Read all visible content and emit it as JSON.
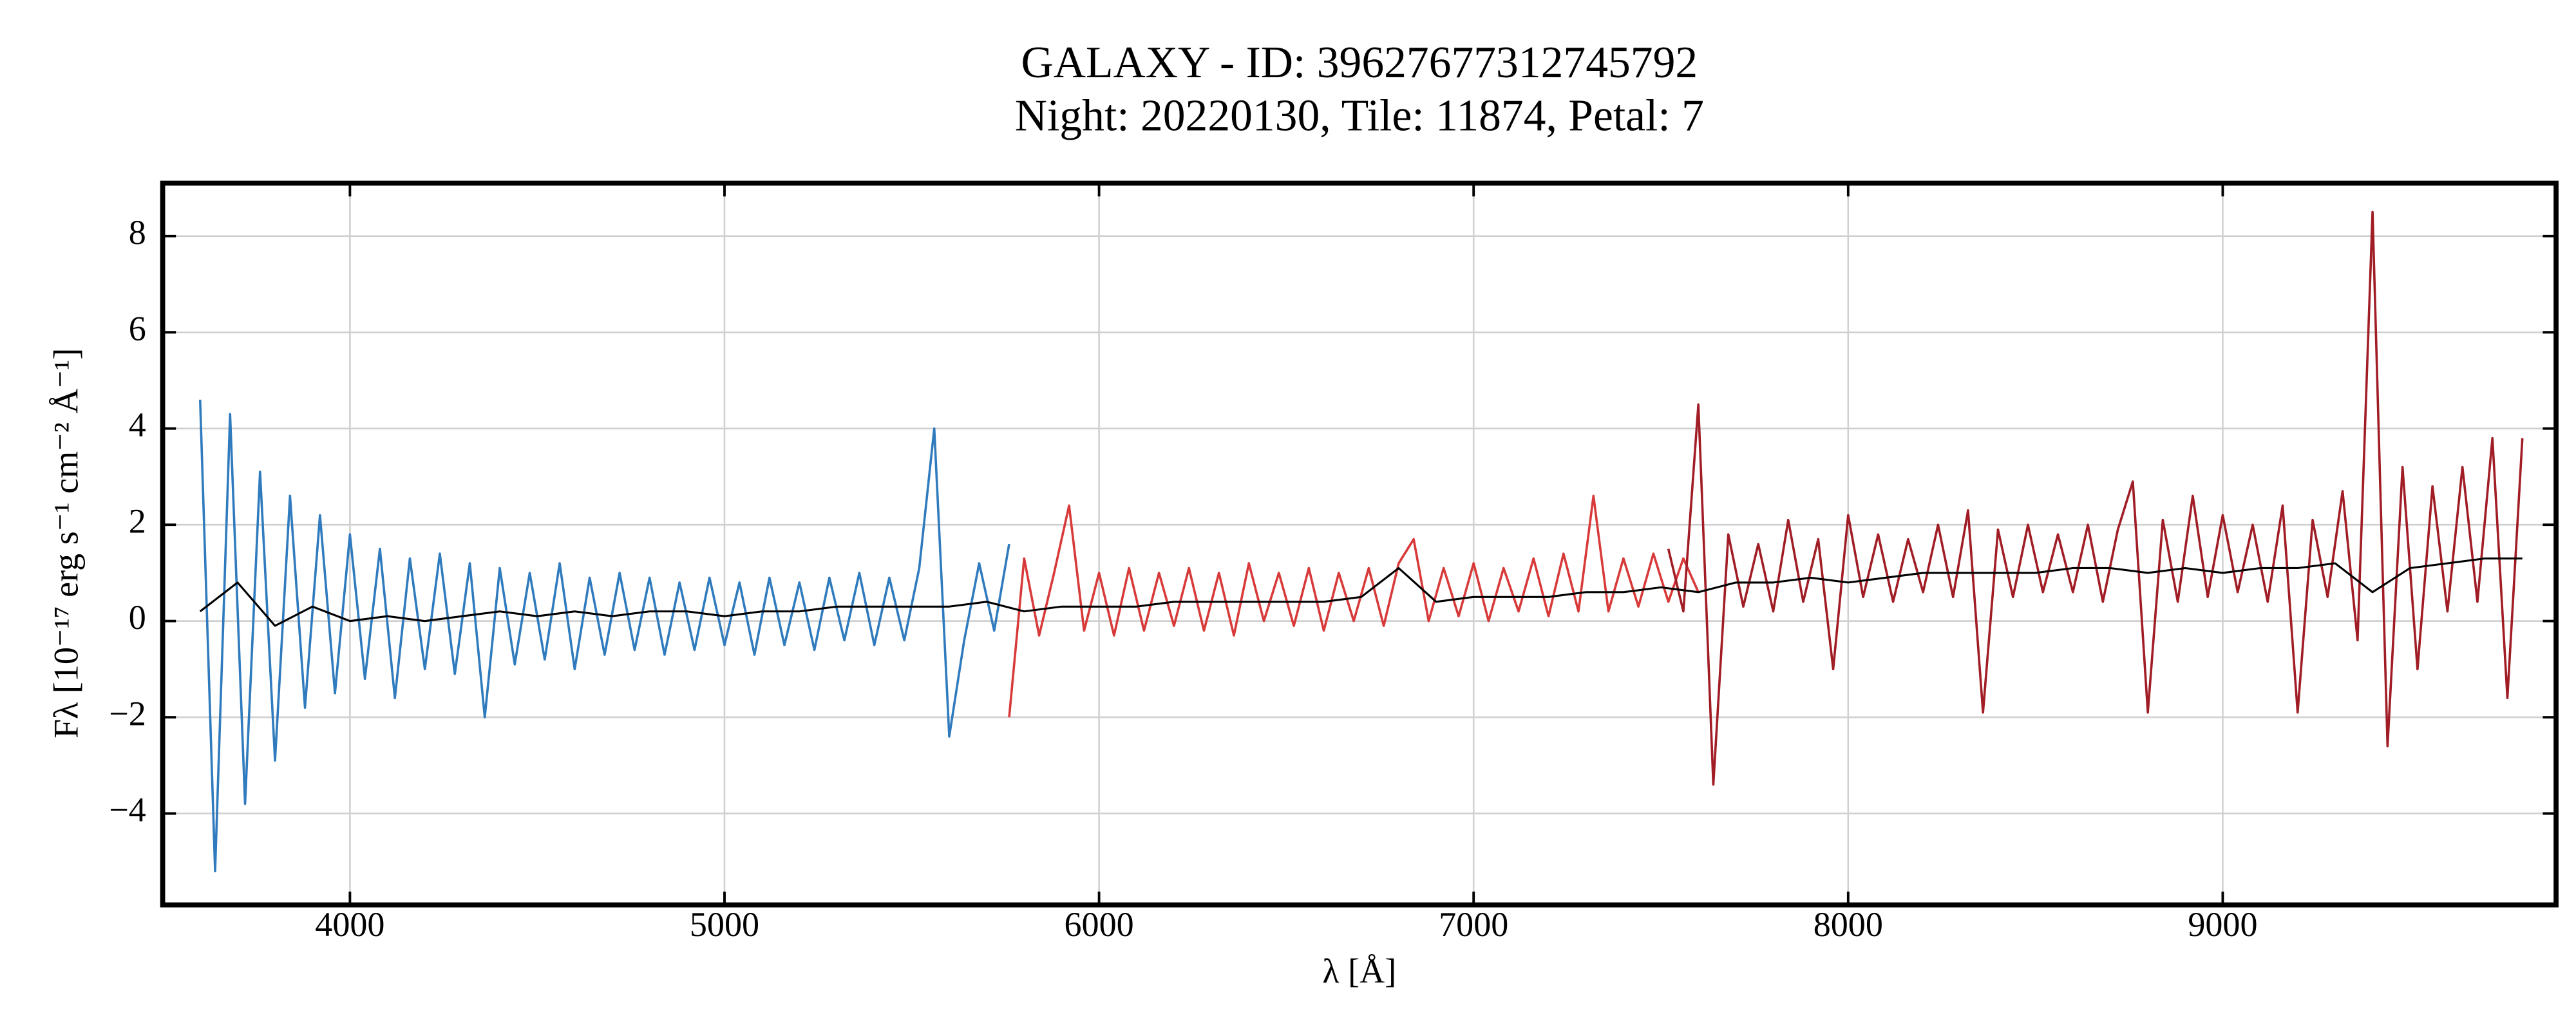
{
  "chart_data": {
    "type": "line",
    "title": "GALAXY - ID: 39627677312745792",
    "subtitle": "Night: 20220130, Tile: 11874, Petal: 7",
    "xlabel": "λ [Å]",
    "ylabel": "Fλ [10⁻¹⁷ erg s⁻¹ cm⁻² Å⁻¹]",
    "xlim": [
      3500,
      9890
    ],
    "ylim": [
      -5.9,
      9.1
    ],
    "xticks": [
      4000,
      5000,
      6000,
      7000,
      8000,
      9000
    ],
    "yticks": [
      {
        "value": -4,
        "label": "−4"
      },
      {
        "value": -2,
        "label": "−2"
      },
      0,
      2,
      4,
      6,
      8
    ],
    "grid": true,
    "series": [
      {
        "color": "#2f7bbd",
        "x": [
          3600,
          3640,
          3680,
          3720,
          3760,
          3800,
          3840,
          3880,
          3920,
          3960,
          4000,
          4040,
          4080,
          4120,
          4160,
          4200,
          4240,
          4280,
          4320,
          4360,
          4400,
          4440,
          4480,
          4520,
          4560,
          4600,
          4640,
          4680,
          4720,
          4760,
          4800,
          4840,
          4880,
          4920,
          4960,
          5000,
          5040,
          5080,
          5120,
          5160,
          5200,
          5240,
          5280,
          5320,
          5360,
          5400,
          5440,
          5480,
          5520,
          5560,
          5600,
          5640,
          5680,
          5720,
          5760
        ],
        "values": [
          4.6,
          -5.2,
          4.3,
          -3.8,
          3.1,
          -2.9,
          2.6,
          -1.8,
          2.2,
          -1.5,
          1.8,
          -1.2,
          1.5,
          -1.6,
          1.3,
          -1.0,
          1.4,
          -1.1,
          1.2,
          -2.0,
          1.1,
          -0.9,
          1.0,
          -0.8,
          1.2,
          -1.0,
          0.9,
          -0.7,
          1.0,
          -0.6,
          0.9,
          -0.7,
          0.8,
          -0.6,
          0.9,
          -0.5,
          0.8,
          -0.7,
          0.9,
          -0.5,
          0.8,
          -0.6,
          0.9,
          -0.4,
          1.0,
          -0.5,
          0.9,
          -0.4,
          1.1,
          4.0,
          -2.4,
          -0.4,
          1.2,
          -0.2,
          1.6
        ]
      },
      {
        "color": "#d83a3a",
        "x": [
          5760,
          5800,
          5840,
          5880,
          5920,
          5960,
          6000,
          6040,
          6080,
          6120,
          6160,
          6200,
          6240,
          6280,
          6320,
          6360,
          6400,
          6440,
          6480,
          6520,
          6560,
          6600,
          6640,
          6680,
          6720,
          6760,
          6800,
          6840,
          6880,
          6920,
          6960,
          7000,
          7040,
          7080,
          7120,
          7160,
          7200,
          7240,
          7280,
          7320,
          7360,
          7400,
          7440,
          7480,
          7520,
          7560,
          7600
        ],
        "values": [
          -2.0,
          1.3,
          -0.3,
          1.0,
          2.4,
          -0.2,
          1.0,
          -0.3,
          1.1,
          -0.2,
          1.0,
          -0.1,
          1.1,
          -0.2,
          1.0,
          -0.3,
          1.2,
          0.0,
          1.0,
          -0.1,
          1.1,
          -0.2,
          1.0,
          0.0,
          1.1,
          -0.1,
          1.2,
          1.7,
          0.0,
          1.1,
          0.1,
          1.2,
          0.0,
          1.1,
          0.2,
          1.3,
          0.1,
          1.4,
          0.2,
          2.6,
          0.2,
          1.3,
          0.3,
          1.4,
          0.4,
          1.3,
          0.6
        ]
      },
      {
        "color": "#a11d26",
        "x": [
          7520,
          7560,
          7600,
          7640,
          7680,
          7720,
          7760,
          7800,
          7840,
          7880,
          7920,
          7960,
          8000,
          8040,
          8080,
          8120,
          8160,
          8200,
          8240,
          8280,
          8320,
          8360,
          8400,
          8440,
          8480,
          8520,
          8560,
          8600,
          8640,
          8680,
          8720,
          8760,
          8800,
          8840,
          8880,
          8920,
          8960,
          9000,
          9040,
          9080,
          9120,
          9160,
          9200,
          9240,
          9280,
          9320,
          9360,
          9400,
          9440,
          9480,
          9520,
          9560,
          9600,
          9640,
          9680,
          9720,
          9760,
          9800
        ],
        "values": [
          1.5,
          0.2,
          4.5,
          -3.4,
          1.8,
          0.3,
          1.6,
          0.2,
          2.1,
          0.4,
          1.7,
          -1.0,
          2.2,
          0.5,
          1.8,
          0.4,
          1.7,
          0.6,
          2.0,
          0.5,
          2.3,
          -1.9,
          1.9,
          0.5,
          2.0,
          0.6,
          1.8,
          0.6,
          2.0,
          0.4,
          1.9,
          2.9,
          -1.9,
          2.1,
          0.4,
          2.6,
          0.5,
          2.2,
          0.6,
          2.0,
          0.4,
          2.4,
          -1.9,
          2.1,
          0.5,
          2.7,
          -0.4,
          8.5,
          -2.6,
          3.2,
          -1.0,
          2.8,
          0.2,
          3.2,
          0.4,
          3.8,
          -1.6,
          3.8
        ]
      },
      {
        "color": "#000000",
        "x": [
          3600,
          3700,
          3800,
          3900,
          4000,
          4100,
          4200,
          4300,
          4400,
          4500,
          4600,
          4700,
          4800,
          4900,
          5000,
          5100,
          5200,
          5300,
          5400,
          5500,
          5600,
          5700,
          5800,
          5900,
          6000,
          6100,
          6200,
          6300,
          6400,
          6500,
          6600,
          6700,
          6800,
          6900,
          7000,
          7100,
          7200,
          7300,
          7400,
          7500,
          7600,
          7700,
          7800,
          7900,
          8000,
          8100,
          8200,
          8300,
          8400,
          8500,
          8600,
          8700,
          8800,
          8900,
          9000,
          9100,
          9200,
          9300,
          9400,
          9500,
          9600,
          9700,
          9800
        ],
        "values": [
          0.2,
          0.8,
          -0.1,
          0.3,
          0.0,
          0.1,
          0.0,
          0.1,
          0.2,
          0.1,
          0.2,
          0.1,
          0.2,
          0.2,
          0.1,
          0.2,
          0.2,
          0.3,
          0.3,
          0.3,
          0.3,
          0.4,
          0.2,
          0.3,
          0.3,
          0.3,
          0.4,
          0.4,
          0.4,
          0.4,
          0.4,
          0.5,
          1.1,
          0.4,
          0.5,
          0.5,
          0.5,
          0.6,
          0.6,
          0.7,
          0.6,
          0.8,
          0.8,
          0.9,
          0.8,
          0.9,
          1.0,
          1.0,
          1.0,
          1.0,
          1.1,
          1.1,
          1.0,
          1.1,
          1.0,
          1.1,
          1.1,
          1.2,
          0.6,
          1.1,
          1.2,
          1.3,
          1.3
        ]
      }
    ]
  }
}
